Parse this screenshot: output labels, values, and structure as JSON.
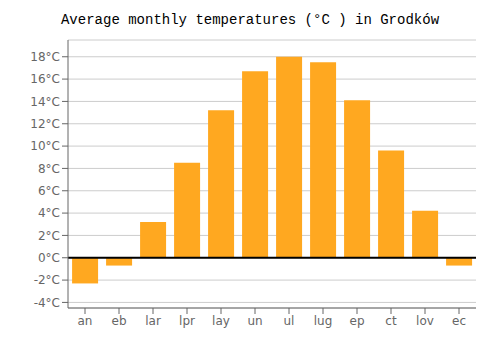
{
  "chart_data": {
    "type": "bar",
    "title": "Average monthly temperatures (°C ) in Grodków",
    "categories": [
      "an",
      "eb",
      "lar",
      "lpr",
      "lay",
      "un",
      "ul",
      "lug",
      "ep",
      "ct",
      "lov",
      "ec"
    ],
    "values": [
      -2.3,
      -0.7,
      3.2,
      8.5,
      13.2,
      16.7,
      18.0,
      17.5,
      14.1,
      9.6,
      4.2,
      -0.7
    ],
    "color": "#FFA820",
    "ylim": [
      -4.5,
      19.5
    ],
    "yticks": [
      {
        "value": -4,
        "label": "-4°C"
      },
      {
        "value": -2,
        "label": "-2°C"
      },
      {
        "value": 0,
        "label": "0°C"
      },
      {
        "value": 2,
        "label": "2°C"
      },
      {
        "value": 4,
        "label": "4°C"
      },
      {
        "value": 6,
        "label": "6°C"
      },
      {
        "value": 8,
        "label": "8°C"
      },
      {
        "value": 10,
        "label": "10°C"
      },
      {
        "value": 12,
        "label": "12°C"
      },
      {
        "value": 14,
        "label": "14°C"
      },
      {
        "value": 16,
        "label": "16°C"
      },
      {
        "value": 18,
        "label": "18°C"
      }
    ],
    "grid": true
  }
}
